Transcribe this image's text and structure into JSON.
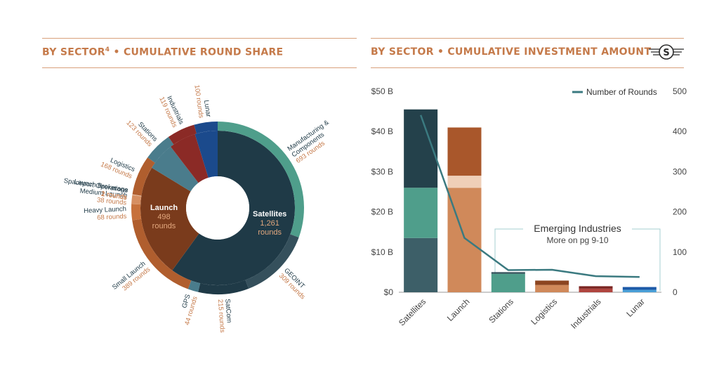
{
  "left_panel": {
    "title_prefix": "BY SECTOR",
    "footnote_mark": "4",
    "title_suffix": " • CUMULATIVE ROUND SHARE"
  },
  "right_panel": {
    "title": "BY SECTOR • CUMULATIVE INVESTMENT AMOUNT",
    "logo_icon": "space-capital-s-logo-icon"
  },
  "chart_data": [
    {
      "type": "pie",
      "title": "Cumulative Round Share",
      "inner": [
        {
          "name": "Satellites",
          "value": "1,261",
          "unit": "rounds",
          "rounds": 1261,
          "color": "#1f3a47"
        },
        {
          "name": "Launch",
          "value": "498",
          "unit": "rounds",
          "rounds": 498,
          "color": "#7a3b1c"
        },
        {
          "name": "Stations",
          "rounds": 123,
          "color": "#4a7c8c"
        },
        {
          "name": "Industrials",
          "rounds": 119,
          "color": "#8b2a26"
        },
        {
          "name": "Lunar",
          "rounds": 100,
          "color": "#1b4a8c"
        }
      ],
      "outer": [
        {
          "name": "Manufacturing & Components",
          "lines": [
            "Manufacturing &",
            "Components"
          ],
          "value": "693 rounds",
          "rounds": 693,
          "color": "#4f9e8b"
        },
        {
          "name": "GEOINT",
          "lines": [
            "GEOINT"
          ],
          "value": "309 rounds",
          "rounds": 309,
          "color": "#35505c"
        },
        {
          "name": "SatCom",
          "lines": [
            "SatCom"
          ],
          "value": "215 rounds",
          "rounds": 215,
          "color": "#1f3a47"
        },
        {
          "name": "GPS",
          "lines": [
            "GPS"
          ],
          "value": "44 rounds",
          "rounds": 44,
          "color": "#4a7c8c"
        },
        {
          "name": "Small Launch",
          "lines": [
            "Small Launch"
          ],
          "value": "389 rounds",
          "rounds": 389,
          "color": "#b05e2e"
        },
        {
          "name": "Heavy Launch",
          "lines": [
            "Heavy Launch"
          ],
          "value": "68 rounds",
          "rounds": 68,
          "color": "#c7713c"
        },
        {
          "name": "Medium Launch",
          "lines": [
            "Medium Launch"
          ],
          "value": "38 rounds",
          "rounds": 38,
          "color": "#d68f62"
        },
        {
          "name": "Spaceport Operations",
          "lines": [
            "Spaceport Operations"
          ],
          "value": "2 rounds",
          "rounds": 2,
          "color": "#e2b08f"
        },
        {
          "name": "Launch Brokerage",
          "lines": [
            "Launch Brokerage"
          ],
          "value": "1 rounds",
          "rounds": 1,
          "color": "#eccbb4"
        },
        {
          "name": "Logistics",
          "lines": [
            "Logistics"
          ],
          "value": "168 rounds",
          "rounds": 168,
          "color": "#b05e2e"
        },
        {
          "name": "Stations",
          "lines": [
            "Stations"
          ],
          "value": "123 rounds",
          "rounds": 123,
          "color": "#4a7c8c"
        },
        {
          "name": "Industrials",
          "lines": [
            "Industrials"
          ],
          "value": "119 rounds",
          "rounds": 119,
          "color": "#8b2a26"
        },
        {
          "name": "Lunar",
          "lines": [
            "Lunar"
          ],
          "value": "100 rounds",
          "rounds": 100,
          "color": "#1b4a8c"
        }
      ]
    },
    {
      "type": "bar",
      "stacked": true,
      "title": "Cumulative Investment Amount",
      "categories": [
        "Satellites",
        "Launch",
        "Stations",
        "Logistics",
        "Industrials",
        "Lunar"
      ],
      "stacks": [
        [
          {
            "value": 13.5,
            "color": "#3d5f68"
          },
          {
            "value": 12.5,
            "color": "#4f9e8b"
          },
          {
            "value": 19.5,
            "color": "#24414b"
          }
        ],
        [
          {
            "value": 26.0,
            "color": "#d0895a"
          },
          {
            "value": 3.0,
            "color": "#efcfb8"
          },
          {
            "value": 12.0,
            "color": "#a9572b"
          }
        ],
        [
          {
            "value": 4.6,
            "color": "#4f9e8b"
          },
          {
            "value": 0.4,
            "color": "#2f4d57"
          }
        ],
        [
          {
            "value": 1.8,
            "color": "#d0895a"
          },
          {
            "value": 1.1,
            "color": "#8c4520"
          }
        ],
        [
          {
            "value": 0.9,
            "color": "#b0453f"
          },
          {
            "value": 0.6,
            "color": "#7a2420"
          }
        ],
        [
          {
            "value": 0.6,
            "color": "#4aa0d8"
          },
          {
            "value": 0.7,
            "color": "#1d5aa8"
          }
        ]
      ],
      "line": {
        "name": "Number of Rounds",
        "values": [
          441,
          135,
          55,
          56,
          40,
          38
        ],
        "color": "#3b7a80"
      },
      "y_ticks": [
        "$0",
        "$10 B",
        "$20 B",
        "$30 B",
        "$40 B",
        "$50 B"
      ],
      "ylim": [
        0,
        50
      ],
      "y2_ticks": [
        "0",
        "100",
        "200",
        "300",
        "400",
        "500"
      ],
      "y2lim": [
        0,
        500
      ],
      "annotation": {
        "title": "Emerging Industries",
        "subtitle": "More on pg 9-10"
      },
      "legend": "top-right"
    }
  ]
}
